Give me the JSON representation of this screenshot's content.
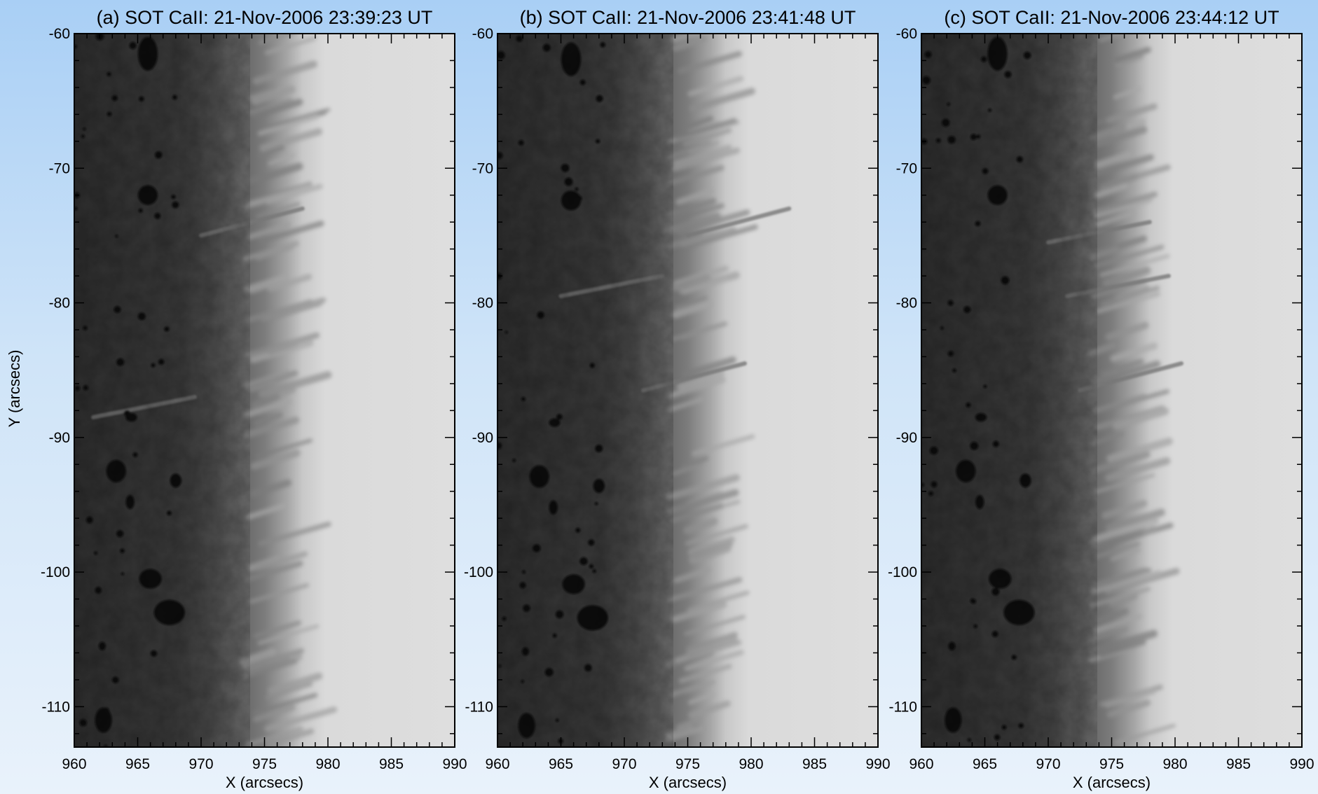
{
  "panels": [
    {
      "title": "(a) SOT CaII: 21-Nov-2006 23:39:23 UT",
      "variant": 0
    },
    {
      "title": "(b) SOT CaII: 21-Nov-2006 23:41:48 UT",
      "variant": 1
    },
    {
      "title": "(c) SOT CaII: 21-Nov-2006 23:44:12 UT",
      "variant": 2
    }
  ],
  "x_axis": {
    "label": "X (arcsecs)",
    "range": [
      960,
      990
    ],
    "ticks": [
      "960",
      "965",
      "970",
      "975",
      "980",
      "985",
      "990"
    ]
  },
  "y_axis": {
    "label": "Y (arcsecs)",
    "range": [
      -113,
      -60
    ],
    "ticks": [
      "-60",
      "-70",
      "-80",
      "-90",
      "-100",
      "-110"
    ]
  },
  "colors": {
    "background_top": "#a9cff5",
    "disk": "#2a2a2a",
    "sky": "#dedede"
  }
}
